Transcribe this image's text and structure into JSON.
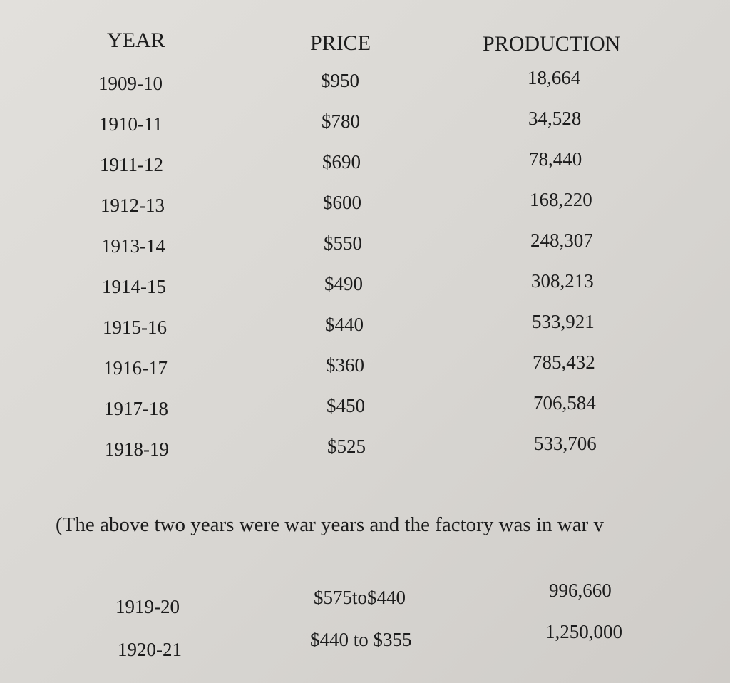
{
  "table": {
    "header": [
      "YEAR",
      "PRICE",
      "PRODUCTION"
    ],
    "rows": [
      [
        "1909-10",
        "$950",
        "18,664"
      ],
      [
        "1910-11",
        "$780",
        "34,528"
      ],
      [
        "1911-12",
        "$690",
        "78,440"
      ],
      [
        "1912-13",
        "$600",
        "168,220"
      ],
      [
        "1913-14",
        "$550",
        "248,307"
      ],
      [
        "1914-15",
        "$490",
        "308,213"
      ],
      [
        "1915-16",
        "$440",
        "533,921"
      ],
      [
        "1916-17",
        "$360",
        "785,432"
      ],
      [
        "1917-18",
        "$450",
        "706,584"
      ],
      [
        "1918-19",
        "$525",
        "533,706"
      ]
    ]
  },
  "note": "(The above two years were war years and the factory was in war v",
  "table2": {
    "rows": [
      [
        "1919-20",
        "$575to$440",
        "996,660"
      ],
      [
        "1920-21",
        "$440 to $355",
        "1,250,000"
      ]
    ]
  }
}
